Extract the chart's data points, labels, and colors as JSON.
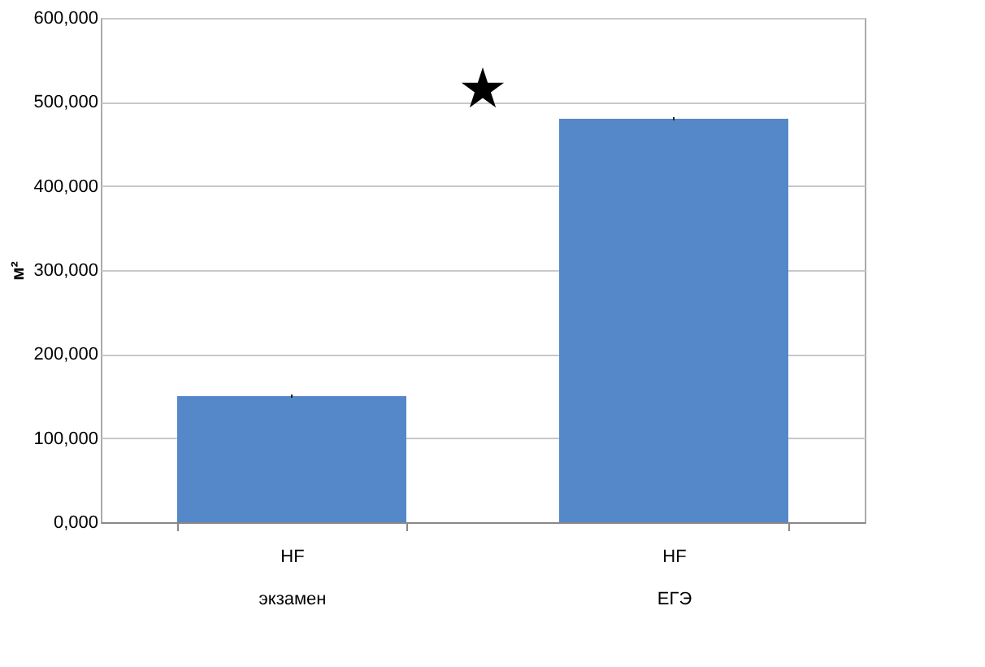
{
  "chart_data": {
    "type": "bar",
    "categories": [
      "HF\nэкзамен",
      "HF\nЕГЭ"
    ],
    "values": [
      150000,
      480000
    ],
    "errors": [
      2000,
      2000
    ],
    "color": "#5588c8",
    "ylabel": "м²",
    "ylim": [
      0,
      600000
    ],
    "yticks": [
      {
        "value": 0,
        "label": "0,000"
      },
      {
        "value": 100000,
        "label": "100,000"
      },
      {
        "value": 200000,
        "label": "200,000"
      },
      {
        "value": 300000,
        "label": "300,000"
      },
      {
        "value": 400000,
        "label": "400,000"
      },
      {
        "value": 500000,
        "label": "500,000"
      },
      {
        "value": 600000,
        "label": "600,000"
      }
    ],
    "grid": "y",
    "annotations": [
      "★"
    ]
  }
}
